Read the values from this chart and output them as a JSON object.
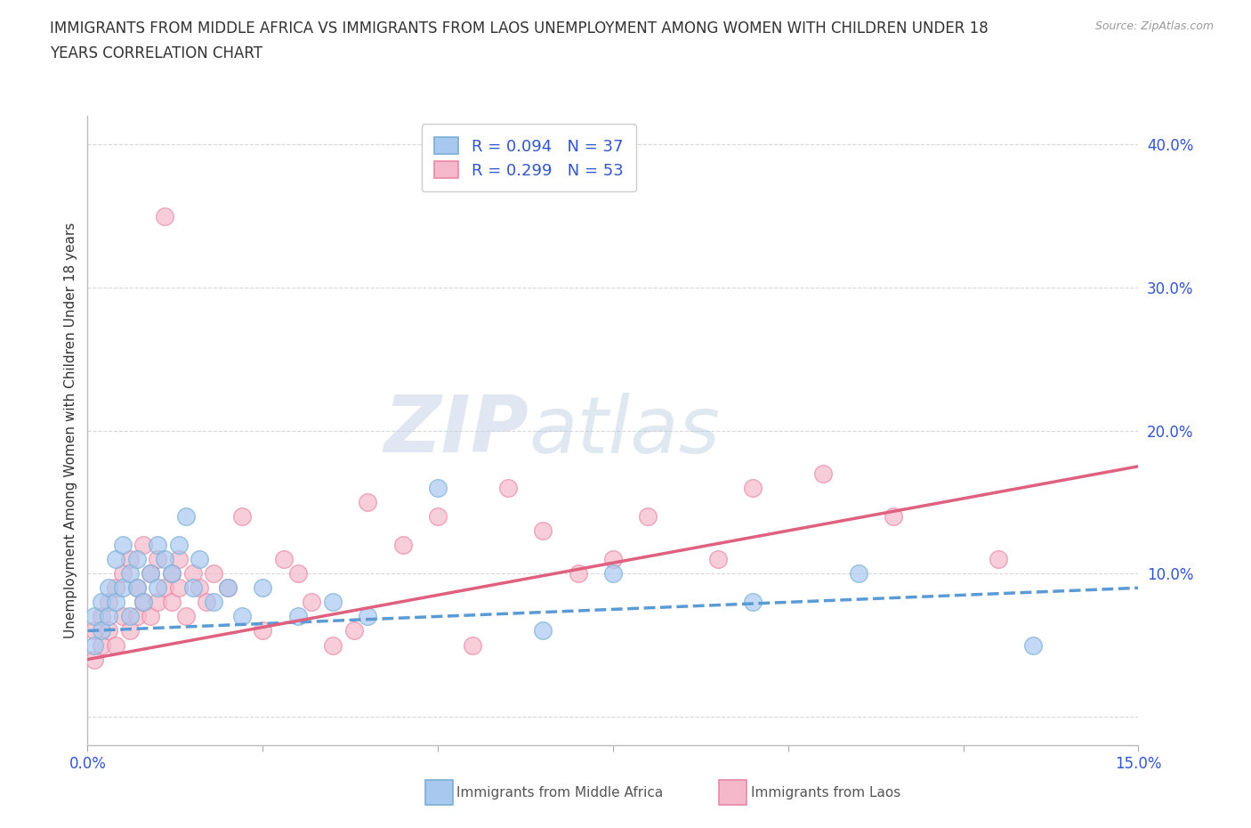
{
  "title_line1": "IMMIGRANTS FROM MIDDLE AFRICA VS IMMIGRANTS FROM LAOS UNEMPLOYMENT AMONG WOMEN WITH CHILDREN UNDER 18",
  "title_line2": "YEARS CORRELATION CHART",
  "source": "Source: ZipAtlas.com",
  "ylabel": "Unemployment Among Women with Children Under 18 years",
  "xlim": [
    0.0,
    0.15
  ],
  "ylim": [
    -0.02,
    0.42
  ],
  "xticks": [
    0.0,
    0.025,
    0.05,
    0.075,
    0.1,
    0.125,
    0.15
  ],
  "xticklabels": [
    "0.0%",
    "",
    "",
    "",
    "",
    "",
    "15.0%"
  ],
  "yticks": [
    0.0,
    0.1,
    0.2,
    0.3,
    0.4
  ],
  "yticklabels": [
    "",
    "10.0%",
    "20.0%",
    "30.0%",
    "40.0%"
  ],
  "blue_marker_color": "#a8c8f0",
  "blue_edge_color": "#7aafd4",
  "pink_marker_color": "#f5b8cb",
  "pink_edge_color": "#e888a8",
  "blue_line_color": "#5b9bd5",
  "pink_line_color": "#e06080",
  "blue_R": 0.094,
  "blue_N": 37,
  "pink_R": 0.299,
  "pink_N": 53,
  "legend_label_blue": "Immigrants from Middle Africa",
  "legend_label_pink": "Immigrants from Laos",
  "watermark": "ZIPatlas",
  "blue_scatter_x": [
    0.001,
    0.001,
    0.002,
    0.002,
    0.003,
    0.003,
    0.004,
    0.004,
    0.005,
    0.005,
    0.006,
    0.006,
    0.007,
    0.007,
    0.008,
    0.009,
    0.01,
    0.01,
    0.011,
    0.012,
    0.013,
    0.014,
    0.015,
    0.016,
    0.018,
    0.02,
    0.022,
    0.025,
    0.03,
    0.035,
    0.04,
    0.05,
    0.065,
    0.075,
    0.095,
    0.11,
    0.135
  ],
  "blue_scatter_y": [
    0.05,
    0.07,
    0.06,
    0.08,
    0.07,
    0.09,
    0.08,
    0.11,
    0.09,
    0.12,
    0.07,
    0.1,
    0.09,
    0.11,
    0.08,
    0.1,
    0.09,
    0.12,
    0.11,
    0.1,
    0.12,
    0.14,
    0.09,
    0.11,
    0.08,
    0.09,
    0.07,
    0.09,
    0.07,
    0.08,
    0.07,
    0.16,
    0.06,
    0.1,
    0.08,
    0.1,
    0.05
  ],
  "pink_scatter_x": [
    0.001,
    0.001,
    0.002,
    0.002,
    0.003,
    0.003,
    0.004,
    0.004,
    0.005,
    0.005,
    0.006,
    0.006,
    0.007,
    0.007,
    0.008,
    0.008,
    0.009,
    0.009,
    0.01,
    0.01,
    0.011,
    0.011,
    0.012,
    0.012,
    0.013,
    0.013,
    0.014,
    0.015,
    0.016,
    0.017,
    0.018,
    0.02,
    0.022,
    0.025,
    0.028,
    0.03,
    0.032,
    0.035,
    0.038,
    0.04,
    0.045,
    0.05,
    0.055,
    0.06,
    0.065,
    0.07,
    0.075,
    0.08,
    0.09,
    0.095,
    0.105,
    0.115,
    0.13
  ],
  "pink_scatter_y": [
    0.04,
    0.06,
    0.05,
    0.07,
    0.06,
    0.08,
    0.05,
    0.09,
    0.07,
    0.1,
    0.06,
    0.11,
    0.07,
    0.09,
    0.08,
    0.12,
    0.07,
    0.1,
    0.08,
    0.11,
    0.09,
    0.35,
    0.1,
    0.08,
    0.09,
    0.11,
    0.07,
    0.1,
    0.09,
    0.08,
    0.1,
    0.09,
    0.14,
    0.06,
    0.11,
    0.1,
    0.08,
    0.05,
    0.06,
    0.15,
    0.12,
    0.14,
    0.05,
    0.16,
    0.13,
    0.1,
    0.11,
    0.14,
    0.11,
    0.16,
    0.17,
    0.14,
    0.11
  ],
  "blue_trend_x": [
    0.0,
    0.15
  ],
  "blue_trend_y": [
    0.06,
    0.09
  ],
  "pink_trend_x": [
    0.0,
    0.15
  ],
  "pink_trend_y": [
    0.04,
    0.175
  ],
  "grid_color": "#d8d8d8",
  "legend_text_color": "#3355cc",
  "tick_color": "#3355cc"
}
